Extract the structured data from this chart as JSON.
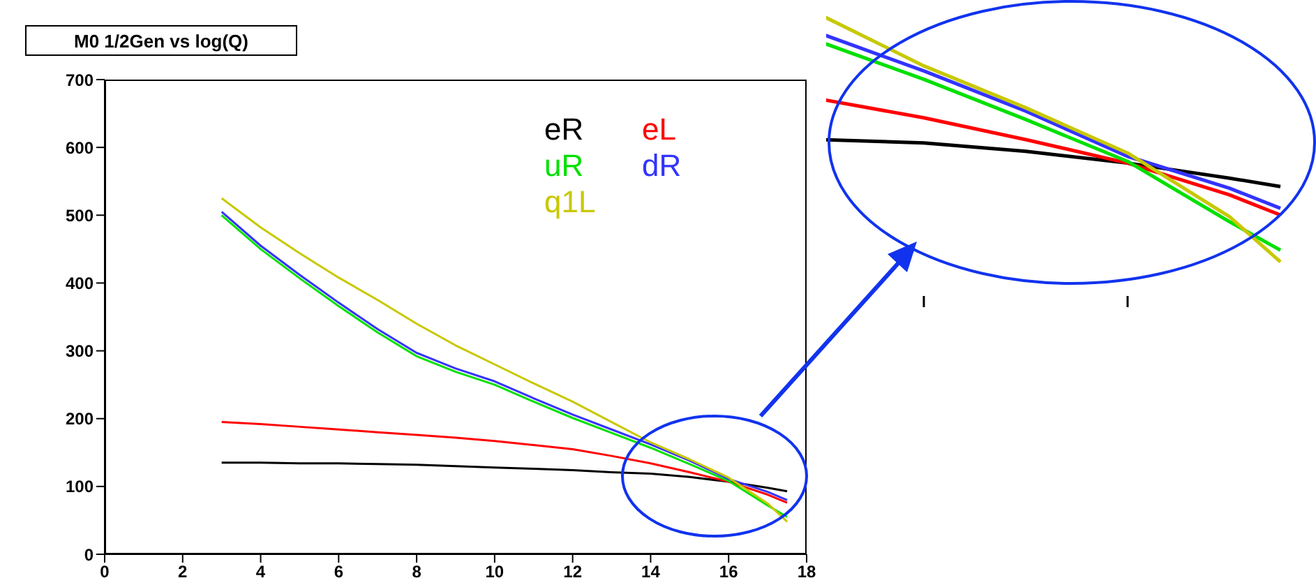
{
  "chart_data": {
    "type": "line",
    "title": "M0 1/2Gen vs log(Q)",
    "x": [
      3,
      4,
      5,
      6,
      7,
      8,
      9,
      10,
      11,
      12,
      13,
      14,
      15,
      16,
      17,
      17.5
    ],
    "series": [
      {
        "name": "eR",
        "color": "#000000",
        "values": [
          135,
          135,
          134,
          134,
          133,
          132,
          130,
          128,
          126,
          124,
          121,
          119,
          114,
          107,
          98,
          93
        ]
      },
      {
        "name": "eL",
        "color": "#ff0000",
        "values": [
          195,
          192,
          188,
          184,
          180,
          176,
          172,
          167,
          161,
          155,
          145,
          134,
          121,
          107,
          88,
          76
        ]
      },
      {
        "name": "uR",
        "color": "#00e000",
        "values": [
          500,
          450,
          407,
          366,
          327,
          292,
          269,
          250,
          225,
          201,
          179,
          157,
          133,
          108,
          72,
          55
        ]
      },
      {
        "name": "dR",
        "color": "#3333ff",
        "values": [
          505,
          455,
          412,
          371,
          332,
          297,
          274,
          255,
          230,
          206,
          184,
          162,
          138,
          111,
          92,
          80
        ]
      },
      {
        "name": "q1L",
        "color": "#c8c800",
        "values": [
          525,
          482,
          444,
          408,
          375,
          340,
          308,
          280,
          252,
          225,
          195,
          165,
          140,
          113,
          75,
          48
        ]
      }
    ],
    "xlim": [
      0,
      18
    ],
    "xticks": [
      0,
      2,
      4,
      6,
      8,
      10,
      12,
      14,
      16,
      18
    ],
    "ylim": [
      0,
      700
    ],
    "yticks": [
      0,
      100,
      200,
      300,
      400,
      500,
      600,
      700
    ],
    "grid": false,
    "legend": "top right",
    "marker": "none",
    "line_style": "solid"
  }
}
